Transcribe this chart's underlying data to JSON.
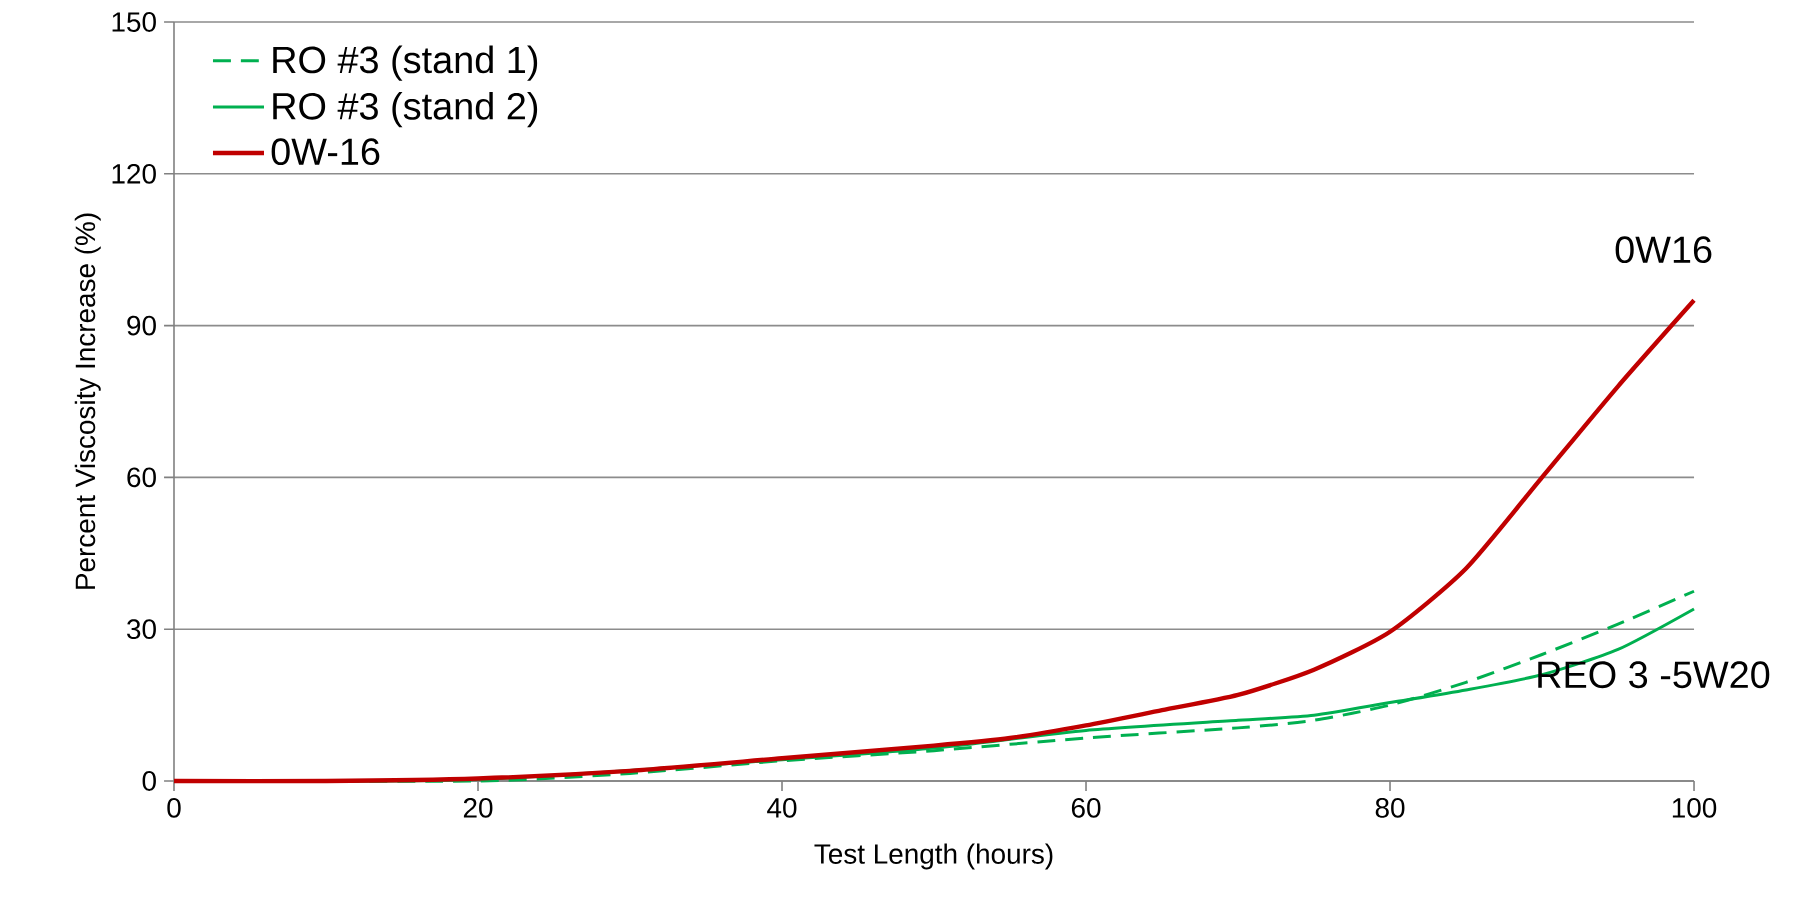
{
  "chart_data": {
    "type": "line",
    "xlabel": "Test Length (hours)",
    "ylabel": "Percent Viscosity Increase (%)",
    "xlim": [
      0,
      100
    ],
    "ylim": [
      0,
      150
    ],
    "xticks": [
      0,
      20,
      40,
      60,
      80,
      100
    ],
    "yticks": [
      0,
      30,
      60,
      90,
      120,
      150
    ],
    "grid": "y",
    "legend": "top left",
    "marker": "none",
    "series": [
      {
        "name": "RO #3 (stand 1)",
        "color": "#00b050",
        "line_style": "dashed",
        "x": [
          0,
          20,
          30,
          40,
          50,
          60,
          70,
          75,
          80,
          85,
          90,
          95,
          100
        ],
        "values": [
          0,
          0,
          1.5,
          4,
          6,
          8.5,
          10.5,
          12,
          15,
          19.5,
          25,
          31,
          37.5
        ]
      },
      {
        "name": "RO #3 (stand 2)",
        "color": "#00b050",
        "line_style": "solid",
        "x": [
          0,
          20,
          40,
          50,
          60,
          70,
          75,
          80,
          85,
          90,
          95,
          100
        ],
        "values": [
          0,
          0.3,
          4.2,
          6.5,
          10,
          12,
          13,
          15.5,
          18,
          21,
          26,
          34
        ]
      },
      {
        "name": "0W-16",
        "color": "#c00000",
        "line_style": "solid",
        "x": [
          0,
          10,
          20,
          30,
          40,
          50,
          55,
          60,
          65,
          70,
          75,
          80,
          85,
          90,
          95,
          100
        ],
        "values": [
          0,
          0,
          0.5,
          2,
          4.5,
          7,
          8.5,
          11,
          14,
          17,
          22,
          29.5,
          42,
          60,
          78,
          95
        ]
      }
    ],
    "annotations": [
      "0W16",
      "REO 3 -5W20"
    ]
  }
}
